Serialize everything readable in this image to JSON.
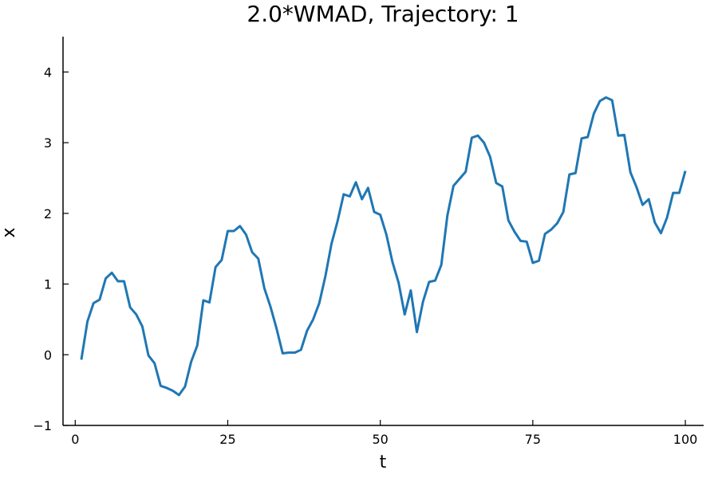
{
  "chart_data": {
    "type": "line",
    "title": "2.0*WMAD, Trajectory: 1",
    "xlabel": "t",
    "ylabel": "x",
    "xlim": [
      -2,
      103
    ],
    "ylim": [
      -1,
      4.5
    ],
    "xticks": [
      0,
      25,
      50,
      75,
      100
    ],
    "yticks": [
      -1,
      0,
      1,
      2,
      3,
      4
    ],
    "x_tick_labels": [
      "0",
      "25",
      "50",
      "75",
      "100"
    ],
    "y_tick_labels": [
      "−1",
      "0",
      "1",
      "2",
      "3",
      "4"
    ],
    "grid": false,
    "legend": "none",
    "series": [
      {
        "color": "#1f77b4",
        "x": [
          1,
          2,
          3,
          4,
          5,
          6,
          7,
          8,
          9,
          10,
          11,
          12,
          13,
          14,
          15,
          16,
          17,
          18,
          19,
          20,
          21,
          22,
          23,
          24,
          25,
          26,
          27,
          28,
          29,
          30,
          31,
          32,
          33,
          34,
          35,
          36,
          37,
          38,
          39,
          40,
          41,
          42,
          43,
          44,
          45,
          46,
          47,
          48,
          49,
          50,
          51,
          52,
          53,
          54,
          55,
          56,
          57,
          58,
          59,
          60,
          61,
          62,
          63,
          64,
          65,
          66,
          67,
          68,
          69,
          70,
          71,
          72,
          73,
          74,
          75,
          76,
          77,
          78,
          79,
          80,
          81,
          82,
          83,
          84,
          85,
          86,
          87,
          88,
          89,
          90,
          91,
          92,
          93,
          94,
          95,
          96,
          97,
          98,
          99,
          100
        ],
        "values": [
          -0.07,
          0.47,
          0.73,
          0.78,
          1.08,
          1.16,
          1.04,
          1.04,
          0.67,
          0.57,
          0.4,
          -0.01,
          -0.12,
          -0.44,
          -0.47,
          -0.51,
          -0.57,
          -0.45,
          -0.1,
          0.13,
          0.77,
          0.74,
          1.24,
          1.34,
          1.75,
          1.75,
          1.82,
          1.7,
          1.45,
          1.36,
          0.94,
          0.68,
          0.37,
          0.02,
          0.03,
          0.03,
          0.07,
          0.34,
          0.5,
          0.73,
          1.11,
          1.57,
          1.89,
          2.27,
          2.24,
          2.44,
          2.2,
          2.36,
          2.02,
          1.98,
          1.7,
          1.31,
          1.02,
          0.57,
          0.91,
          0.32,
          0.75,
          1.03,
          1.05,
          1.27,
          1.97,
          2.39,
          2.49,
          2.59,
          3.07,
          3.1,
          3.0,
          2.8,
          2.43,
          2.38,
          1.9,
          1.74,
          1.61,
          1.6,
          1.3,
          1.33,
          1.71,
          1.77,
          1.86,
          2.02,
          2.55,
          2.57,
          3.06,
          3.08,
          3.41,
          3.59,
          3.64,
          3.6,
          3.1,
          3.11,
          2.58,
          2.37,
          2.12,
          2.2,
          1.87,
          1.72,
          1.94,
          2.29,
          2.29,
          2.6
        ]
      }
    ]
  }
}
